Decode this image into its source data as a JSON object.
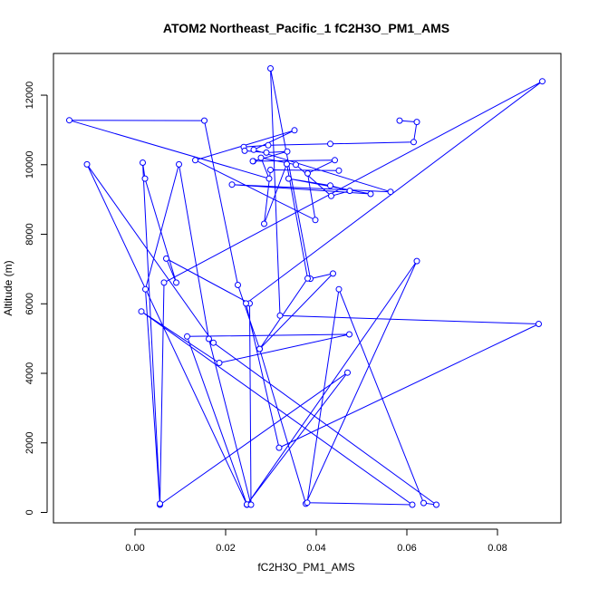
{
  "chart_data": {
    "type": "line",
    "title": "ATOM2 Northeast_Pacific_1 fC2H3O_PM1_AMS",
    "xlabel": "fC2H3O_PM1_AMS",
    "ylabel": "Altitude (m)",
    "xlim": [
      -0.018,
      0.094
    ],
    "ylim": [
      -300,
      13200
    ],
    "xticks": [
      0.0,
      0.02,
      0.04,
      0.06,
      0.08
    ],
    "xtick_labels": [
      "0.00",
      "0.02",
      "0.04",
      "0.06",
      "0.08"
    ],
    "yticks": [
      0,
      2000,
      4000,
      6000,
      8000,
      10000,
      12000
    ],
    "ytick_labels": [
      "0",
      "2000",
      "4000",
      "6000",
      "8000",
      "10000",
      "12000"
    ],
    "grid": false,
    "line_color": "#0000ff",
    "marker": "open-circle",
    "series": [
      {
        "x": [
          0.0584,
          0.0622,
          0.0615,
          0.0431,
          0.0294,
          0.024,
          0.0242,
          0.029,
          0.0336,
          0.0261,
          0.026,
          0.0441,
          0.0381,
          0.0398,
          0.0133,
          0.0352,
          0.0262,
          0.0564,
          0.0214,
          0.052,
          0.0339,
          0.0431,
          0.0474,
          0.0433,
          0.0355,
          0.0278,
          0.0296,
          -0.0145,
          0.0153,
          0.0227,
          0.0275,
          0.0377,
          0.0622,
          0.0247,
          -0.0106,
          0.0173,
          0.0665,
          0.0637,
          0.045,
          0.038,
          0.0612,
          0.0014,
          0.0186,
          0.0473,
          0.0115,
          0.0247,
          0.0469,
          0.0055,
          0.0023,
          0.0097,
          0.0163,
          0.0256,
          0.0253,
          0.0069,
          0.0091,
          0.0022,
          0.0017,
          0.0055,
          0.0064,
          0.0899,
          0.0245,
          0.0318,
          0.0891,
          0.032,
          0.0299,
          0.0387,
          0.0437,
          0.0275,
          0.0381,
          0.0335,
          0.0285,
          0.0299,
          0.045
        ],
        "y": [
          11270,
          11230,
          10650,
          10600,
          10560,
          10510,
          10400,
          10350,
          10380,
          10100,
          10100,
          10130,
          9750,
          8410,
          10130,
          10990,
          10430,
          9220,
          9430,
          9160,
          9600,
          9400,
          9250,
          9100,
          10000,
          10200,
          9600,
          11280,
          11270,
          6540,
          4700,
          250,
          7230,
          220,
          10010,
          4880,
          220,
          270,
          6420,
          280,
          220,
          5780,
          4300,
          5120,
          5060,
          230,
          4020,
          220,
          6420,
          10010,
          4990,
          220,
          6010,
          7300,
          6610,
          9600,
          10060,
          250,
          6610,
          12400,
          6010,
          1860,
          5420,
          5660,
          12770,
          6720,
          6870,
          4700,
          6730,
          10020,
          8300,
          9850,
          9830
        ]
      }
    ]
  }
}
